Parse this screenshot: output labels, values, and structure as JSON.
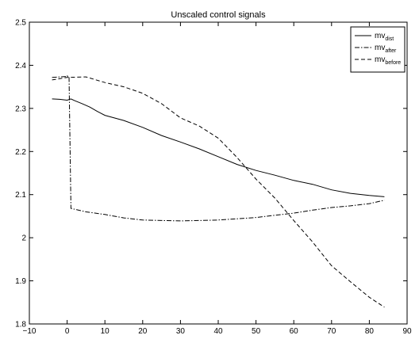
{
  "chart_data": {
    "type": "line",
    "title": "Unscaled control signals",
    "xlabel": "",
    "ylabel": "",
    "xlim": [
      -10,
      90
    ],
    "ylim": [
      1.8,
      2.5
    ],
    "xticks": [
      -10,
      0,
      10,
      20,
      30,
      40,
      50,
      60,
      70,
      80,
      90
    ],
    "yticks": [
      1.8,
      1.9,
      2.0,
      2.1,
      2.2,
      2.3,
      2.4,
      2.5
    ],
    "xtick_labels": [
      "−10",
      "0",
      "10",
      "20",
      "30",
      "40",
      "50",
      "60",
      "70",
      "80",
      "90"
    ],
    "ytick_labels": [
      "1.8",
      "1.9",
      "2",
      "2.1",
      "2.2",
      "2.3",
      "2.4",
      "2.5"
    ],
    "grid": false,
    "legend_position": "top-right",
    "series": [
      {
        "name": "mv",
        "subscript": "dist",
        "style": "solid",
        "x": [
          -4,
          -2,
          0,
          1,
          2,
          4,
          6,
          8,
          10,
          15,
          20,
          25,
          30,
          35,
          40,
          45,
          50,
          55,
          60,
          65,
          70,
          75,
          80,
          84
        ],
        "y": [
          2.322,
          2.321,
          2.319,
          2.322,
          2.318,
          2.311,
          2.303,
          2.293,
          2.284,
          2.272,
          2.256,
          2.237,
          2.222,
          2.206,
          2.188,
          2.17,
          2.156,
          2.145,
          2.133,
          2.124,
          2.111,
          2.103,
          2.098,
          2.095
        ]
      },
      {
        "name": "mv",
        "subscript": "after",
        "style": "dashdot",
        "x": [
          -4,
          -2,
          0,
          0,
          0.5,
          1,
          5,
          10,
          15,
          20,
          25,
          30,
          35,
          40,
          45,
          50,
          55,
          60,
          65,
          70,
          75,
          80,
          84
        ],
        "y": [
          2.372,
          2.373,
          2.374,
          2.375,
          2.374,
          2.068,
          2.06,
          2.054,
          2.046,
          2.041,
          2.04,
          2.039,
          2.04,
          2.041,
          2.044,
          2.047,
          2.052,
          2.057,
          2.064,
          2.07,
          2.074,
          2.079,
          2.087
        ]
      },
      {
        "name": "mv",
        "subscript": "before",
        "style": "dashed",
        "x": [
          -4,
          0,
          5,
          10,
          15,
          20,
          25,
          30,
          35,
          40,
          45,
          50,
          55,
          60,
          65,
          70,
          75,
          80,
          84
        ],
        "y": [
          2.366,
          2.372,
          2.373,
          2.36,
          2.35,
          2.335,
          2.311,
          2.278,
          2.259,
          2.231,
          2.186,
          2.136,
          2.092,
          2.04,
          1.99,
          1.935,
          1.898,
          1.862,
          1.839
        ]
      }
    ]
  }
}
